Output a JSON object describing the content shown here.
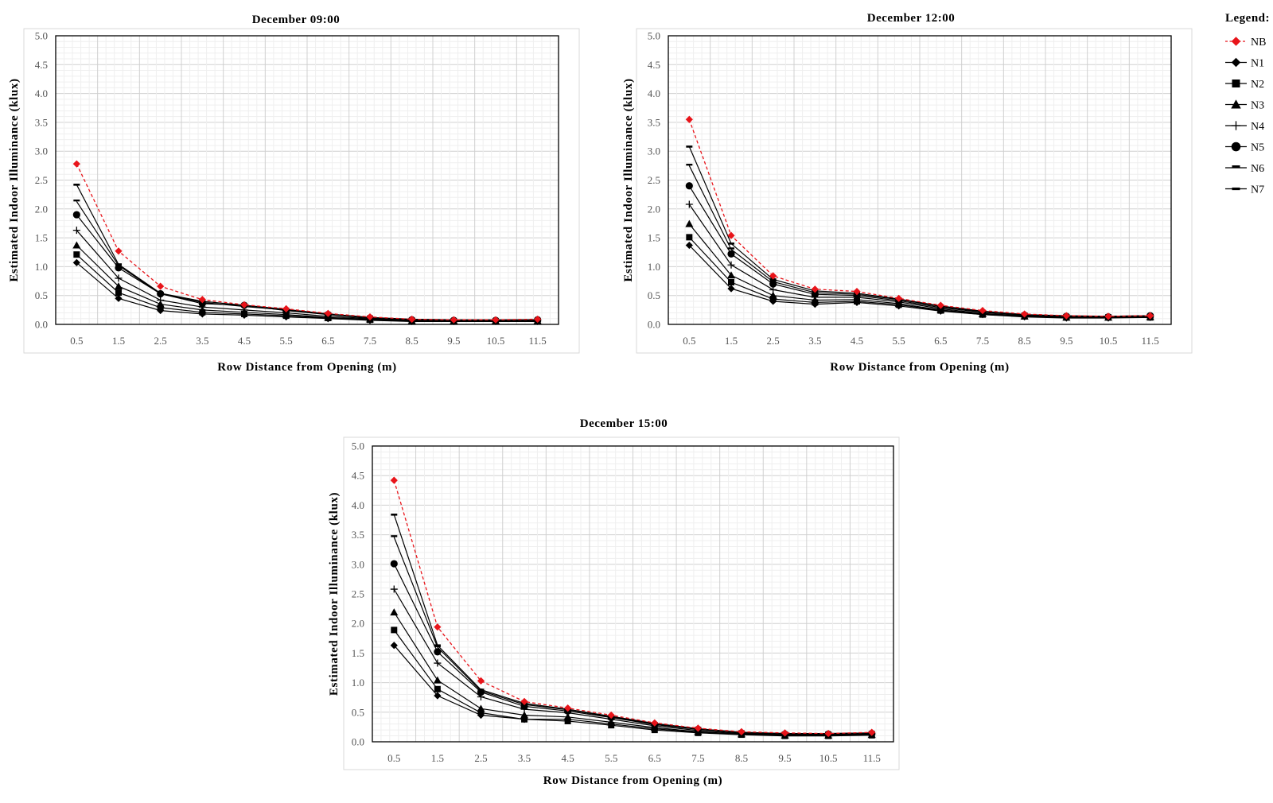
{
  "legend": {
    "title": "Legend:",
    "items": [
      {
        "label": "NB",
        "marker": "diamond",
        "color": "#e8141a",
        "dashed": true
      },
      {
        "label": "N1",
        "marker": "diamond",
        "color": "#000000",
        "dashed": false
      },
      {
        "label": "N2",
        "marker": "square",
        "color": "#000000",
        "dashed": false
      },
      {
        "label": "N3",
        "marker": "triangle",
        "color": "#000000",
        "dashed": false
      },
      {
        "label": "N4",
        "marker": "plus",
        "color": "#000000",
        "dashed": false
      },
      {
        "label": "N5",
        "marker": "circle",
        "color": "#000000",
        "dashed": false
      },
      {
        "label": "N6",
        "marker": "dash-top",
        "color": "#000000",
        "dashed": false
      },
      {
        "label": "N7",
        "marker": "dash",
        "color": "#000000",
        "dashed": false
      }
    ]
  },
  "chart_data": [
    {
      "type": "line",
      "title": "December 09:00",
      "xlabel": "Row Distance from Opening (m)",
      "ylabel": "Estimated Indoor Illuminance (klux)",
      "ylim": [
        0,
        5
      ],
      "yticks": [
        "0.0",
        "0.5",
        "1.0",
        "1.5",
        "2.0",
        "2.5",
        "3.0",
        "3.5",
        "4.0",
        "4.5",
        "5.0"
      ],
      "categories": [
        "0.5",
        "1.5",
        "2.5",
        "3.5",
        "4.5",
        "5.5",
        "6.5",
        "7.5",
        "8.5",
        "9.5",
        "10.5",
        "11.5"
      ],
      "grid": true,
      "series": [
        {
          "name": "NB",
          "values": [
            2.78,
            1.27,
            0.66,
            0.43,
            0.34,
            0.27,
            0.19,
            0.13,
            0.09,
            0.08,
            0.08,
            0.09
          ]
        },
        {
          "name": "N1",
          "values": [
            1.07,
            0.45,
            0.24,
            0.18,
            0.16,
            0.13,
            0.1,
            0.07,
            0.05,
            0.05,
            0.05,
            0.05
          ]
        },
        {
          "name": "N2",
          "values": [
            1.21,
            0.55,
            0.29,
            0.21,
            0.18,
            0.15,
            0.11,
            0.08,
            0.06,
            0.05,
            0.05,
            0.05
          ]
        },
        {
          "name": "N3",
          "values": [
            1.37,
            0.66,
            0.35,
            0.25,
            0.21,
            0.17,
            0.12,
            0.09,
            0.06,
            0.06,
            0.06,
            0.06
          ]
        },
        {
          "name": "N4",
          "values": [
            1.63,
            0.8,
            0.42,
            0.3,
            0.25,
            0.2,
            0.14,
            0.1,
            0.07,
            0.06,
            0.06,
            0.07
          ]
        },
        {
          "name": "N5",
          "values": [
            1.9,
            0.98,
            0.53,
            0.36,
            0.33,
            0.24,
            0.17,
            0.11,
            0.08,
            0.07,
            0.07,
            0.08
          ]
        },
        {
          "name": "N6",
          "values": [
            2.13,
            1.02,
            0.53,
            0.38,
            0.31,
            0.25,
            0.18,
            0.12,
            0.08,
            0.07,
            0.07,
            0.08
          ]
        },
        {
          "name": "N7",
          "values": [
            2.42,
            1.04,
            0.54,
            0.4,
            0.33,
            0.26,
            0.18,
            0.12,
            0.09,
            0.08,
            0.08,
            0.08
          ]
        }
      ]
    },
    {
      "type": "line",
      "title": "December 12:00",
      "xlabel": "Row Distance from Opening (m)",
      "ylabel": "Estimated Indoor Illuminance (klux)",
      "ylim": [
        0,
        5
      ],
      "yticks": [
        "0.0",
        "0.5",
        "1.0",
        "1.5",
        "2.0",
        "2.5",
        "3.0",
        "3.5",
        "4.0",
        "4.5",
        "5.0"
      ],
      "categories": [
        "0.5",
        "1.5",
        "2.5",
        "3.5",
        "4.5",
        "5.5",
        "6.5",
        "7.5",
        "8.5",
        "9.5",
        "10.5",
        "11.5"
      ],
      "grid": true,
      "series": [
        {
          "name": "NB",
          "values": [
            3.55,
            1.54,
            0.84,
            0.61,
            0.57,
            0.45,
            0.33,
            0.24,
            0.18,
            0.15,
            0.14,
            0.15
          ]
        },
        {
          "name": "N1",
          "values": [
            1.37,
            0.62,
            0.4,
            0.35,
            0.38,
            0.32,
            0.23,
            0.17,
            0.13,
            0.11,
            0.11,
            0.12
          ]
        },
        {
          "name": "N2",
          "values": [
            1.51,
            0.73,
            0.44,
            0.38,
            0.4,
            0.34,
            0.24,
            0.17,
            0.14,
            0.12,
            0.12,
            0.12
          ]
        },
        {
          "name": "N3",
          "values": [
            1.74,
            0.85,
            0.5,
            0.42,
            0.43,
            0.36,
            0.25,
            0.18,
            0.14,
            0.12,
            0.12,
            0.13
          ]
        },
        {
          "name": "N4",
          "values": [
            2.08,
            1.03,
            0.6,
            0.47,
            0.47,
            0.39,
            0.27,
            0.19,
            0.15,
            0.13,
            0.13,
            0.14
          ]
        },
        {
          "name": "N5",
          "values": [
            2.4,
            1.22,
            0.7,
            0.52,
            0.5,
            0.41,
            0.29,
            0.21,
            0.16,
            0.14,
            0.13,
            0.15
          ]
        },
        {
          "name": "N6",
          "values": [
            2.75,
            1.3,
            0.74,
            0.55,
            0.52,
            0.43,
            0.31,
            0.22,
            0.17,
            0.14,
            0.14,
            0.15
          ]
        },
        {
          "name": "N7",
          "values": [
            3.08,
            1.4,
            0.78,
            0.58,
            0.54,
            0.44,
            0.32,
            0.23,
            0.17,
            0.15,
            0.14,
            0.15
          ]
        }
      ]
    },
    {
      "type": "line",
      "title": "December 15:00",
      "xlabel": "Row Distance from Opening (m)",
      "ylabel": "Estimated Indoor Illuminance (klux)",
      "ylim": [
        0,
        5
      ],
      "yticks": [
        "0.0",
        "0.5",
        "1.0",
        "1.5",
        "2.0",
        "2.5",
        "3.0",
        "3.5",
        "4.0",
        "4.5",
        "5.0"
      ],
      "categories": [
        "0.5",
        "1.5",
        "2.5",
        "3.5",
        "4.5",
        "5.5",
        "6.5",
        "7.5",
        "8.5",
        "9.5",
        "10.5",
        "11.5"
      ],
      "grid": true,
      "series": [
        {
          "name": "NB",
          "values": [
            4.42,
            1.94,
            1.03,
            0.68,
            0.57,
            0.45,
            0.32,
            0.23,
            0.17,
            0.15,
            0.14,
            0.16
          ]
        },
        {
          "name": "N1",
          "values": [
            1.63,
            0.78,
            0.45,
            0.38,
            0.38,
            0.3,
            0.22,
            0.16,
            0.13,
            0.11,
            0.11,
            0.12
          ]
        },
        {
          "name": "N2",
          "values": [
            1.89,
            0.89,
            0.49,
            0.38,
            0.35,
            0.28,
            0.2,
            0.15,
            0.12,
            0.1,
            0.1,
            0.11
          ]
        },
        {
          "name": "N3",
          "values": [
            2.19,
            1.04,
            0.56,
            0.45,
            0.42,
            0.33,
            0.24,
            0.17,
            0.13,
            0.11,
            0.11,
            0.12
          ]
        },
        {
          "name": "N4",
          "values": [
            2.58,
            1.33,
            0.76,
            0.55,
            0.49,
            0.38,
            0.27,
            0.19,
            0.14,
            0.12,
            0.12,
            0.13
          ]
        },
        {
          "name": "N5",
          "values": [
            3.01,
            1.52,
            0.84,
            0.6,
            0.52,
            0.41,
            0.29,
            0.21,
            0.15,
            0.13,
            0.13,
            0.14
          ]
        },
        {
          "name": "N6",
          "values": [
            3.46,
            1.6,
            0.86,
            0.63,
            0.54,
            0.42,
            0.3,
            0.22,
            0.16,
            0.14,
            0.14,
            0.15
          ]
        },
        {
          "name": "N7",
          "values": [
            3.84,
            1.63,
            0.88,
            0.65,
            0.55,
            0.43,
            0.31,
            0.22,
            0.16,
            0.14,
            0.14,
            0.15
          ]
        }
      ]
    }
  ]
}
